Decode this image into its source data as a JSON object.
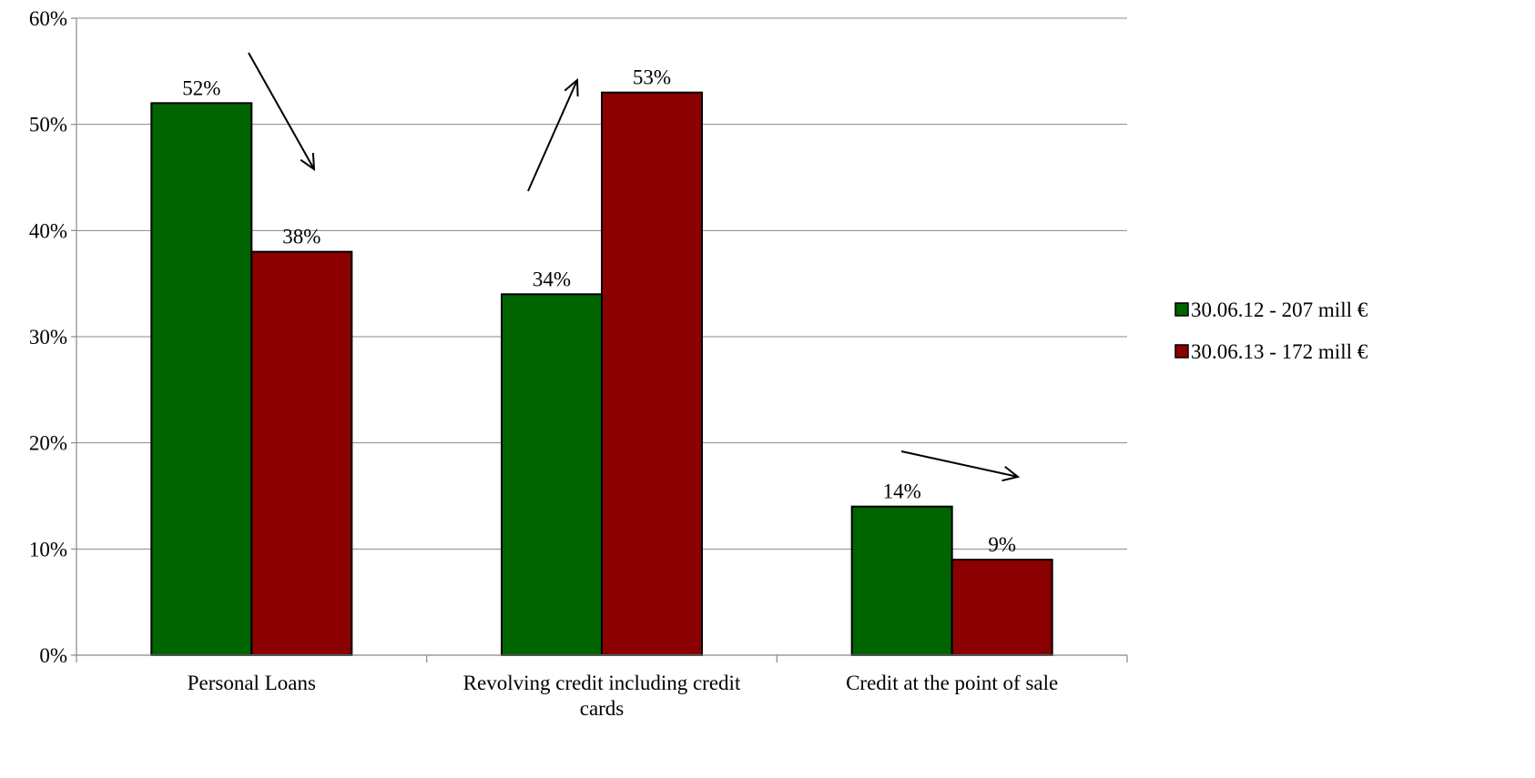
{
  "chart_data": {
    "type": "bar",
    "categories": [
      "Personal Loans",
      "Revolving credit including credit cards",
      "Credit at the point of sale"
    ],
    "category_lines": [
      [
        "Personal Loans"
      ],
      [
        "Revolving credit including credit",
        "cards"
      ],
      [
        "Credit at the point of sale"
      ]
    ],
    "series": [
      {
        "name": "30.06.12 - 207 mill €",
        "color": "#006400",
        "values": [
          52,
          34,
          14
        ],
        "labels": [
          "52%",
          "34%",
          "14%"
        ]
      },
      {
        "name": "30.06.13 - 172 mill €",
        "color": "#8B0000",
        "values": [
          38,
          53,
          9
        ],
        "labels": [
          "38%",
          "53%",
          "9%"
        ]
      }
    ],
    "ylim": [
      0,
      60
    ],
    "yticks": [
      0,
      10,
      20,
      30,
      40,
      50,
      60
    ],
    "ytick_labels": [
      "0%",
      "10%",
      "20%",
      "30%",
      "40%",
      "50%",
      "60%"
    ],
    "title": "",
    "xlabel": "",
    "ylabel": "",
    "grid": true,
    "legend_position": "right",
    "annotations": [
      {
        "type": "arrow",
        "category": "Personal Loans",
        "direction": "down"
      },
      {
        "type": "arrow",
        "category": "Revolving credit including credit cards",
        "direction": "up"
      },
      {
        "type": "arrow",
        "category": "Credit at the point of sale",
        "direction": "down"
      }
    ]
  }
}
